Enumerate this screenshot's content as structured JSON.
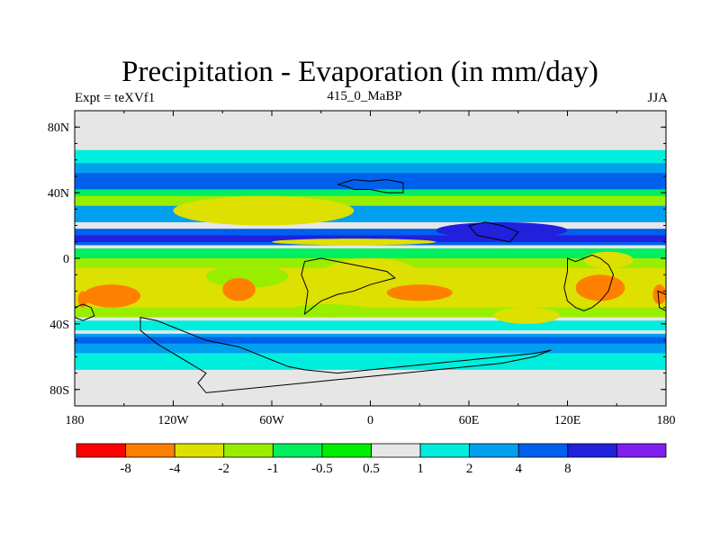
{
  "title": "Precipitation - Evaporation (in mm/day)",
  "left_subtitle": "Expt = teXVf1",
  "center_subtitle": "415_0_MaBP",
  "right_subtitle": "JJA",
  "map": {
    "projection": "cylindrical-equidistant",
    "lon_range": [
      -180,
      180
    ],
    "lat_range": [
      -90,
      90
    ],
    "background_fill": "#e6e6e6",
    "coastline_color": "#000000",
    "lat_ticks": [
      {
        "value": 80,
        "label": "80N"
      },
      {
        "value": 40,
        "label": "40N"
      },
      {
        "value": 0,
        "label": "0"
      },
      {
        "value": -40,
        "label": "40S"
      },
      {
        "value": -80,
        "label": "80S"
      }
    ],
    "lon_ticks": [
      {
        "value": -180,
        "label": "180"
      },
      {
        "value": -120,
        "label": "120W"
      },
      {
        "value": -60,
        "label": "60W"
      },
      {
        "value": 0,
        "label": "0"
      },
      {
        "value": 60,
        "label": "60E"
      },
      {
        "value": 120,
        "label": "120E"
      },
      {
        "value": 180,
        "label": "180"
      }
    ],
    "zonal_bands": [
      {
        "lat": [
          54,
          66
        ],
        "color": "#00eedd"
      },
      {
        "lat": [
          46,
          58
        ],
        "color": "#00a0ee"
      },
      {
        "lat": [
          42,
          52
        ],
        "color": "#0060ee"
      },
      {
        "lat": [
          34,
          42
        ],
        "color": "#00ee60"
      },
      {
        "lat": [
          30,
          38
        ],
        "color": "#99ee00"
      },
      {
        "lat": [
          22,
          32
        ],
        "color": "#00a0ee"
      },
      {
        "lat": [
          8,
          18
        ],
        "color": "#0060ee"
      },
      {
        "lat": [
          10,
          14
        ],
        "color": "#2020dd"
      },
      {
        "lat": [
          -4,
          6
        ],
        "color": "#00ee60"
      },
      {
        "lat": [
          -10,
          0
        ],
        "color": "#99ee00"
      },
      {
        "lat": [
          -16,
          -6
        ],
        "color": "#dde000"
      },
      {
        "lat": [
          -32,
          -14
        ],
        "color": "#dde000"
      },
      {
        "lat": [
          -36,
          -30
        ],
        "color": "#99ee00"
      },
      {
        "lat": [
          -44,
          -38
        ],
        "color": "#00eedd"
      },
      {
        "lat": [
          -58,
          -46
        ],
        "color": "#00a0ee"
      },
      {
        "lat": [
          -52,
          -48
        ],
        "color": "#0060ee"
      },
      {
        "lat": [
          -68,
          -58
        ],
        "color": "#00eedd"
      }
    ],
    "patches": [
      {
        "lon": [
          -120,
          -10
        ],
        "lat": [
          20,
          38
        ],
        "color": "#dde000"
      },
      {
        "lon": [
          -100,
          -50
        ],
        "lat": [
          -18,
          -4
        ],
        "color": "#99ee00"
      },
      {
        "lon": [
          -60,
          40
        ],
        "lat": [
          8,
          12
        ],
        "color": "#dde000"
      },
      {
        "lon": [
          -30,
          30
        ],
        "lat": [
          -20,
          0
        ],
        "color": "#dde000"
      },
      {
        "lon": [
          -90,
          -70
        ],
        "lat": [
          -26,
          -12
        ],
        "color": "#ff8000"
      },
      {
        "lon": [
          10,
          50
        ],
        "lat": [
          -26,
          -16
        ],
        "color": "#ff8000"
      },
      {
        "lon": [
          -175,
          -140
        ],
        "lat": [
          -30,
          -16
        ],
        "color": "#ff8000"
      },
      {
        "lon": [
          125,
          155
        ],
        "lat": [
          -26,
          -10
        ],
        "color": "#ff8000"
      },
      {
        "lon": [
          -178,
          -172
        ],
        "lat": [
          -30,
          -20
        ],
        "color": "#ff8000"
      },
      {
        "lon": [
          172,
          180
        ],
        "lat": [
          -28,
          -16
        ],
        "color": "#ff8000"
      },
      {
        "lon": [
          130,
          160
        ],
        "lat": [
          -6,
          4
        ],
        "color": "#dde000"
      },
      {
        "lon": [
          75,
          115
        ],
        "lat": [
          -40,
          -30
        ],
        "color": "#dde000"
      },
      {
        "lon": [
          -50,
          0
        ],
        "lat": [
          -36,
          -28
        ],
        "color": "#99ee00"
      },
      {
        "lon": [
          40,
          120
        ],
        "lat": [
          12,
          22
        ],
        "color": "#2020dd"
      }
    ],
    "landmasses": [
      [
        [
          -20,
          45
        ],
        [
          -10,
          48
        ],
        [
          0,
          47
        ],
        [
          10,
          48
        ],
        [
          20,
          46
        ],
        [
          20,
          40
        ],
        [
          10,
          40
        ],
        [
          0,
          42
        ],
        [
          -10,
          42
        ],
        [
          -15,
          44
        ]
      ],
      [
        [
          60,
          20
        ],
        [
          70,
          22
        ],
        [
          80,
          20
        ],
        [
          90,
          16
        ],
        [
          85,
          10
        ],
        [
          75,
          12
        ],
        [
          65,
          14
        ]
      ],
      [
        [
          -40,
          -2
        ],
        [
          -30,
          0
        ],
        [
          -20,
          -2
        ],
        [
          -10,
          -4
        ],
        [
          0,
          -6
        ],
        [
          10,
          -8
        ],
        [
          15,
          -12
        ],
        [
          0,
          -16
        ],
        [
          -10,
          -20
        ],
        [
          -20,
          -22
        ],
        [
          -30,
          -26
        ],
        [
          -35,
          -30
        ],
        [
          -40,
          -34
        ],
        [
          -38,
          -20
        ],
        [
          -42,
          -10
        ]
      ],
      [
        [
          120,
          0
        ],
        [
          125,
          -2
        ],
        [
          130,
          0
        ],
        [
          135,
          2
        ],
        [
          140,
          0
        ],
        [
          145,
          -4
        ],
        [
          148,
          -10
        ],
        [
          145,
          -20
        ],
        [
          140,
          -26
        ],
        [
          135,
          -30
        ],
        [
          130,
          -32
        ],
        [
          125,
          -30
        ],
        [
          120,
          -26
        ],
        [
          118,
          -18
        ],
        [
          120,
          -8
        ]
      ],
      [
        [
          -180,
          -30
        ],
        [
          -175,
          -28
        ],
        [
          -170,
          -30
        ],
        [
          -168,
          -35
        ],
        [
          -175,
          -38
        ],
        [
          -180,
          -36
        ]
      ],
      [
        [
          175,
          -20
        ],
        [
          180,
          -22
        ],
        [
          180,
          -32
        ],
        [
          176,
          -30
        ]
      ],
      [
        [
          -140,
          -36
        ],
        [
          -130,
          -38
        ],
        [
          -120,
          -42
        ],
        [
          -110,
          -46
        ],
        [
          -100,
          -50
        ],
        [
          -90,
          -52
        ],
        [
          -80,
          -54
        ],
        [
          -70,
          -58
        ],
        [
          -60,
          -62
        ],
        [
          -50,
          -66
        ],
        [
          -40,
          -68
        ],
        [
          -20,
          -70
        ],
        [
          0,
          -68
        ],
        [
          20,
          -66
        ],
        [
          40,
          -64
        ],
        [
          60,
          -62
        ],
        [
          80,
          -60
        ],
        [
          100,
          -58
        ],
        [
          110,
          -56
        ],
        [
          100,
          -60
        ],
        [
          80,
          -64
        ],
        [
          60,
          -66
        ],
        [
          40,
          -68
        ],
        [
          20,
          -70
        ],
        [
          0,
          -72
        ],
        [
          -20,
          -74
        ],
        [
          -40,
          -76
        ],
        [
          -60,
          -78
        ],
        [
          -80,
          -80
        ],
        [
          -100,
          -82
        ],
        [
          -105,
          -76
        ],
        [
          -100,
          -70
        ],
        [
          -110,
          -64
        ],
        [
          -120,
          -58
        ],
        [
          -130,
          -52
        ],
        [
          -140,
          -44
        ]
      ]
    ]
  },
  "colorbar": {
    "colors": [
      "#ff0000",
      "#ff8000",
      "#dde000",
      "#99ee00",
      "#00ee60",
      "#00ee00",
      "#e6e6e6",
      "#00eedd",
      "#00a0ee",
      "#0060ee",
      "#2020dd",
      "#8020ee"
    ],
    "labels": [
      "-8",
      "-4",
      "-2",
      "-1",
      "-0.5",
      "0.5",
      "1",
      "2",
      "4",
      "8"
    ]
  }
}
